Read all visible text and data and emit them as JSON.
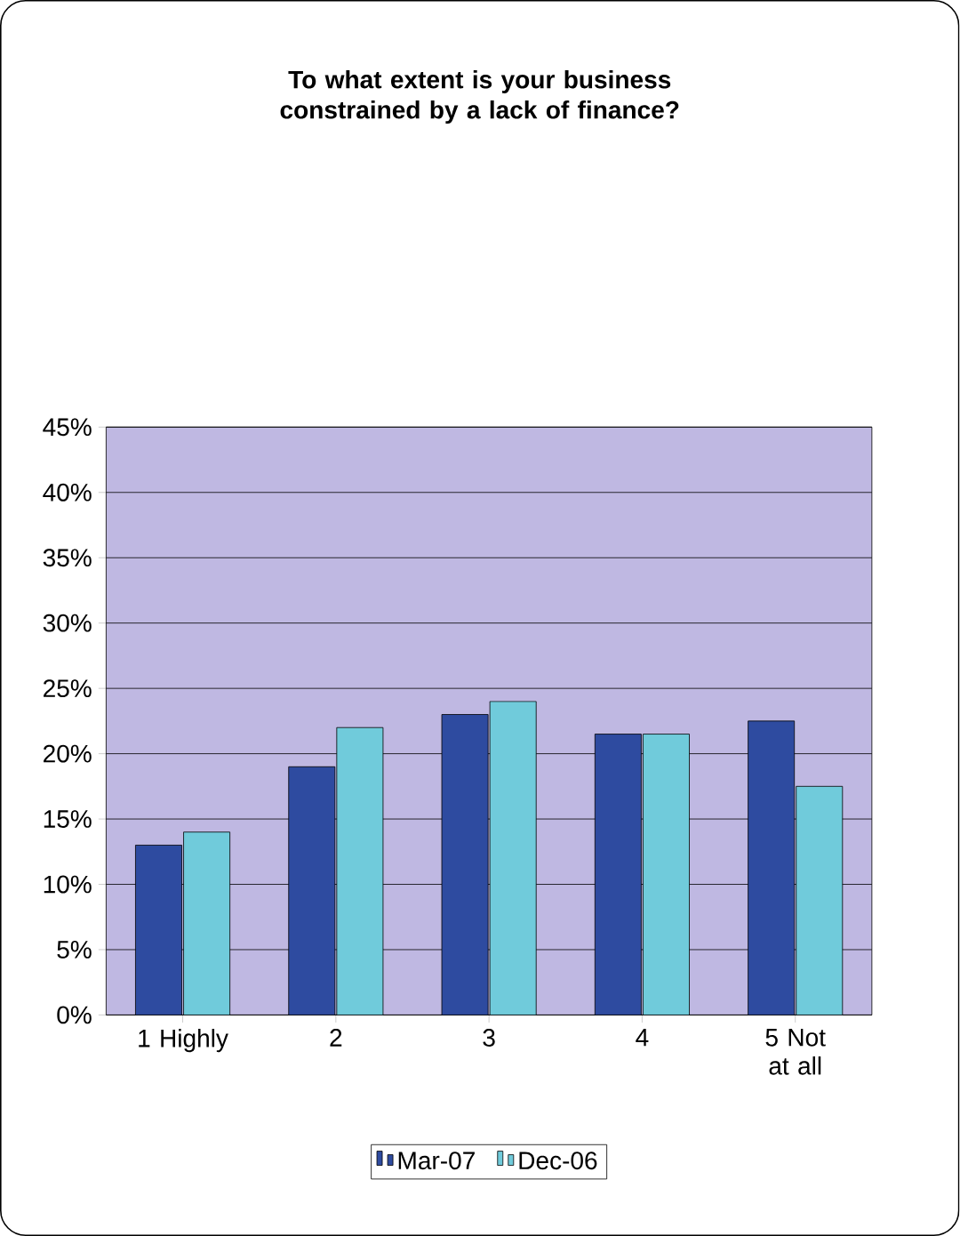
{
  "chart_data": {
    "type": "bar",
    "title": "To what extent is your business constrained by a lack of finance?",
    "categories": [
      "1 Highly",
      "2",
      "3",
      "4",
      "5 Not at all"
    ],
    "series": [
      {
        "name": "Mar-07",
        "color": "#2e4ba0",
        "values": [
          13,
          19,
          23,
          21.5,
          22.5
        ]
      },
      {
        "name": "Dec-06",
        "color": "#70cbdb",
        "values": [
          14,
          22,
          24,
          21.5,
          17.5
        ]
      }
    ],
    "ylim": [
      0,
      45
    ],
    "yticks": [
      {
        "value": 0,
        "label": "0%"
      },
      {
        "value": 5,
        "label": "5%"
      },
      {
        "value": 10,
        "label": "10%"
      },
      {
        "value": 15,
        "label": "15%"
      },
      {
        "value": 20,
        "label": "20%"
      },
      {
        "value": 25,
        "label": "25%"
      },
      {
        "value": 30,
        "label": "30%"
      },
      {
        "value": 35,
        "label": "35%"
      },
      {
        "value": 40,
        "label": "40%"
      },
      {
        "value": 45,
        "label": "45%"
      }
    ],
    "grid": "y",
    "legend": "bottom"
  }
}
